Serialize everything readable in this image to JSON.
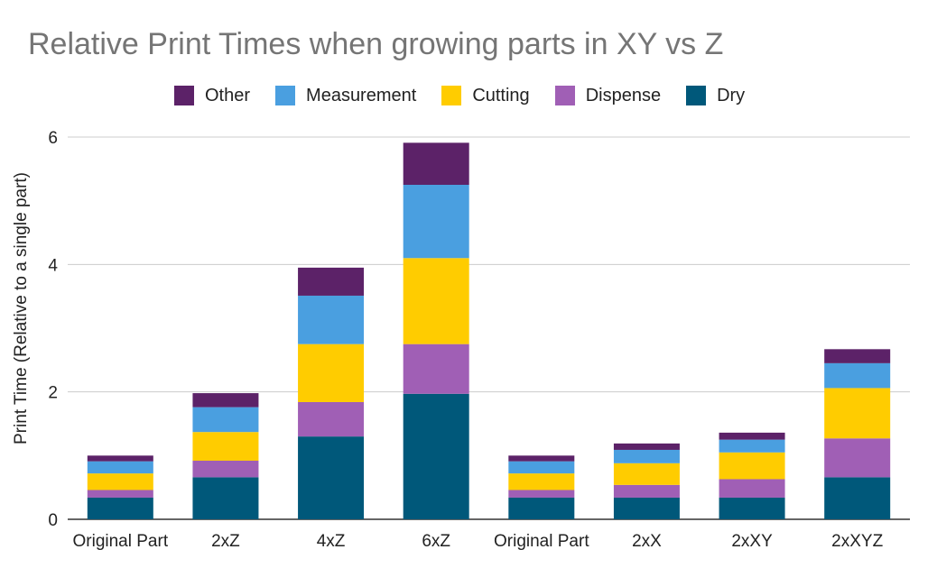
{
  "chart_data": {
    "type": "bar",
    "stacked": true,
    "title": "Relative Print Times when growing parts in XY vs Z",
    "ylabel": "Print Time (Relative to a single part)",
    "xlabel": "",
    "ylim": [
      0,
      6
    ],
    "yticks": [
      0,
      2,
      4,
      6
    ],
    "grid": true,
    "legend_position": "top",
    "categories": [
      "Original Part",
      "2xZ",
      "4xZ",
      "6xZ",
      "Original Part",
      "2xX",
      "2xXY",
      "2xXYZ"
    ],
    "series": [
      {
        "name": "Dry",
        "color": "#00587A",
        "values": [
          0.34,
          0.66,
          1.3,
          1.97,
          0.34,
          0.34,
          0.34,
          0.66
        ]
      },
      {
        "name": "Dispense",
        "color": "#A05FB5",
        "values": [
          0.12,
          0.26,
          0.54,
          0.78,
          0.12,
          0.2,
          0.29,
          0.61
        ]
      },
      {
        "name": "Cutting",
        "color": "#FFCC00",
        "values": [
          0.26,
          0.45,
          0.91,
          1.35,
          0.26,
          0.34,
          0.42,
          0.79
        ]
      },
      {
        "name": "Measurement",
        "color": "#4A9FE0",
        "values": [
          0.19,
          0.39,
          0.76,
          1.15,
          0.19,
          0.21,
          0.2,
          0.39
        ]
      },
      {
        "name": "Other",
        "color": "#5C2268",
        "values": [
          0.09,
          0.22,
          0.44,
          0.66,
          0.09,
          0.1,
          0.11,
          0.22
        ]
      }
    ],
    "legend_order": [
      "Other",
      "Measurement",
      "Cutting",
      "Dispense",
      "Dry"
    ]
  }
}
